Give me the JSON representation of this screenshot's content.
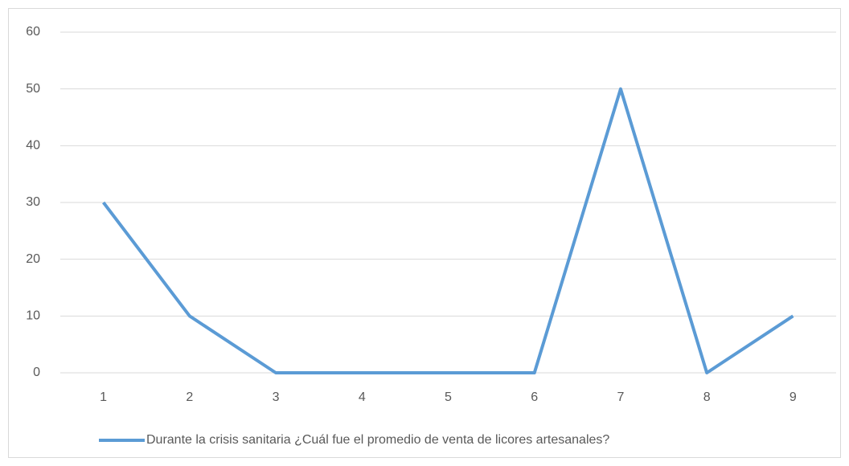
{
  "chart_data": {
    "type": "line",
    "categories": [
      "1",
      "2",
      "3",
      "4",
      "5",
      "6",
      "7",
      "8",
      "9"
    ],
    "series": [
      {
        "name": "Durante la crisis sanitaria ¿Cuál fue el promedio de venta de licores artesanales?",
        "color": "#5b9bd5",
        "values": [
          30,
          10,
          0,
          0,
          0,
          0,
          50,
          0,
          10
        ]
      }
    ],
    "ylim": [
      0,
      60
    ],
    "yticks": [
      0,
      10,
      20,
      30,
      40,
      50,
      60
    ],
    "grid": true,
    "legend": "bottom"
  }
}
